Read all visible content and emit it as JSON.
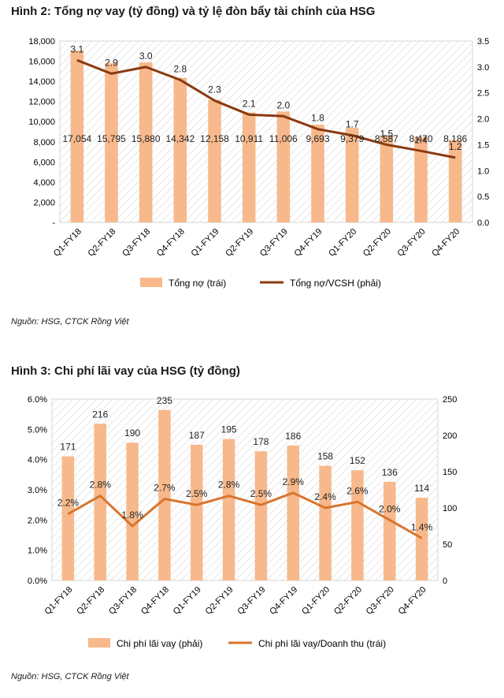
{
  "figure1": {
    "title": "Hình 2: Tổng nợ vay (tỷ đồng) và tỷ lệ đòn bẩy tài chính của HSG",
    "source": "Nguồn: HSG, CTCK Rồng Việt"
  },
  "figure2": {
    "title": "Hình 3: Chi phí lãi vay của HSG (tỷ đồng)",
    "source": "Nguồn: HSG, CTCK Rồng Việt"
  },
  "colors": {
    "bar": "#f7b98c",
    "line1": "#8b3a10",
    "line2": "#d9752e",
    "grid": "#cfcfcf"
  },
  "chart_data": [
    {
      "type": "bar",
      "title": "Hình 2: Tổng nợ vay (tỷ đồng) và tỷ lệ đòn bẩy tài chính của HSG",
      "categories": [
        "Q1-FY18",
        "Q2-FY18",
        "Q3-FY18",
        "Q4-FY18",
        "Q1-FY19",
        "Q2-FY19",
        "Q3-FY19",
        "Q4-FY19",
        "Q1-FY20",
        "Q2-FY20",
        "Q3-FY20",
        "Q4-FY20"
      ],
      "series": [
        {
          "name": "Tổng nợ (trái)",
          "kind": "bar",
          "axis": "left",
          "values": [
            17054,
            15795,
            15880,
            14342,
            12158,
            10911,
            11006,
            9693,
            9379,
            8587,
            8470,
            8186
          ],
          "labels": [
            "17,054",
            "15,795",
            "15,880",
            "14,342",
            "12,158",
            "10,911",
            "11,006",
            "9,693",
            "9,379",
            "8,587",
            "8,470",
            "8,186"
          ]
        },
        {
          "name": "Tổng nợ/VCSH (phải)",
          "kind": "line",
          "axis": "right",
          "values": [
            3.1,
            2.9,
            3.0,
            2.8,
            2.3,
            2.1,
            2.0,
            1.8,
            1.7,
            1.5,
            1.4,
            1.2
          ],
          "plot_values": [
            3.13,
            2.87,
            3.0,
            2.75,
            2.35,
            2.08,
            2.05,
            1.8,
            1.68,
            1.5,
            1.38,
            1.25
          ],
          "labels": [
            "3.1",
            "2.9",
            "3.0",
            "2.8",
            "2.3",
            "2.1",
            "2.0",
            "1.8",
            "1.7",
            "1.5",
            "1.4",
            "1.2"
          ]
        }
      ],
      "y_left": {
        "ylim": [
          0,
          18000
        ],
        "ticks": [
          "-",
          "2,000",
          "4,000",
          "6,000",
          "8,000",
          "10,000",
          "12,000",
          "14,000",
          "16,000",
          "18,000"
        ]
      },
      "y_right": {
        "ylim": [
          0,
          3.5
        ],
        "ticks": [
          "0.0",
          "0.5",
          "1.0",
          "1.5",
          "2.0",
          "2.5",
          "3.0",
          "3.5"
        ]
      },
      "legend": [
        "Tổng nợ (trái)",
        "Tổng nợ/VCSH (phải)"
      ],
      "legend_position": "bottom"
    },
    {
      "type": "bar",
      "title": "Hình 3: Chi phí lãi vay của HSG (tỷ đồng)",
      "categories": [
        "Q1-FY18",
        "Q2-FY18",
        "Q3-FY18",
        "Q4-FY18",
        "Q1-FY19",
        "Q2-FY19",
        "Q3-FY19",
        "Q4-FY19",
        "Q1-FY20",
        "Q2-FY20",
        "Q3-FY20",
        "Q4-FY20"
      ],
      "series": [
        {
          "name": "Chi phí lãi vay (phải)",
          "kind": "bar",
          "axis": "right",
          "values": [
            171,
            216,
            190,
            235,
            187,
            195,
            178,
            186,
            158,
            152,
            136,
            114
          ],
          "labels": [
            "171",
            "216",
            "190",
            "235",
            "187",
            "195",
            "178",
            "186",
            "158",
            "152",
            "136",
            "114"
          ]
        },
        {
          "name": "Chi phí lãi vay/Doanh thu (trái)",
          "kind": "line",
          "axis": "left",
          "values": [
            2.2,
            2.8,
            1.8,
            2.7,
            2.5,
            2.8,
            2.5,
            2.9,
            2.4,
            2.6,
            2.0,
            1.4
          ],
          "labels": [
            "2.2%",
            "2.8%",
            "1.8%",
            "2.7%",
            "2.5%",
            "2.8%",
            "2.5%",
            "2.9%",
            "2.4%",
            "2.6%",
            "2.0%",
            "1.4%"
          ]
        }
      ],
      "y_left": {
        "ylim": [
          0,
          6
        ],
        "ticks": [
          "0.0%",
          "1.0%",
          "2.0%",
          "3.0%",
          "4.0%",
          "5.0%",
          "6.0%"
        ]
      },
      "y_right": {
        "ylim": [
          0,
          250
        ],
        "ticks": [
          "0",
          "50",
          "100",
          "150",
          "200",
          "250"
        ]
      },
      "legend": [
        "Chi phí lãi vay (phải)",
        "Chi phí lãi vay/Doanh thu (trái)"
      ],
      "legend_position": "bottom"
    }
  ]
}
